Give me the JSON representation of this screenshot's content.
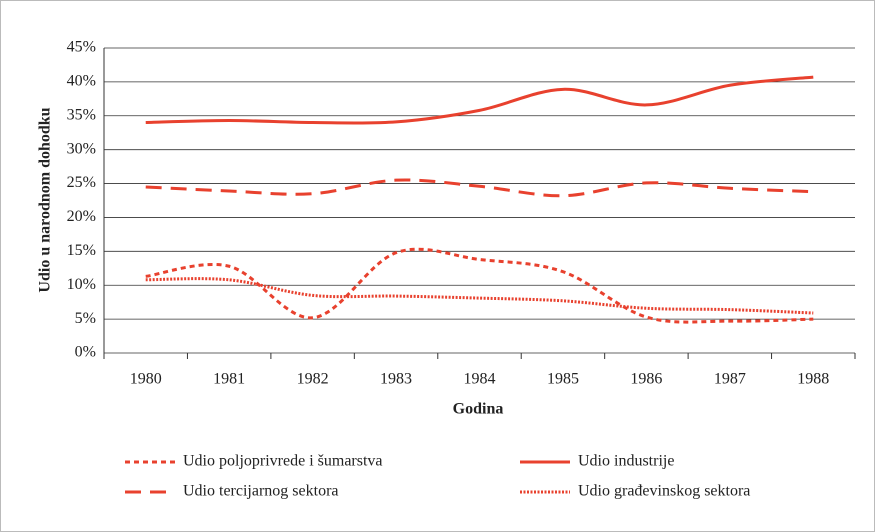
{
  "chart_data": {
    "type": "line",
    "y_label": "Udio u narodnom dohodku",
    "x_label": "Godina",
    "categories": [
      "1980",
      "1981",
      "1982",
      "1983",
      "1984",
      "1985",
      "1986",
      "1987",
      "1988"
    ],
    "series": [
      {
        "name": "Udio poljoprivrede i šumarstva",
        "color": "#e8412e",
        "linestyle": "dashed",
        "values": [
          11.3,
          12.8,
          5.2,
          14.8,
          13.8,
          12.0,
          5.3,
          4.7,
          5.0
        ]
      },
      {
        "name": "Udio industrije",
        "color": "#e8412e",
        "linestyle": "solid",
        "values": [
          34.0,
          34.3,
          34.0,
          34.1,
          35.8,
          38.9,
          36.6,
          39.5,
          40.7
        ]
      },
      {
        "name": "Udio tercijarnog sektora",
        "color": "#e8412e",
        "linestyle": "long-dash",
        "values": [
          24.5,
          23.9,
          23.5,
          25.5,
          24.6,
          23.2,
          25.1,
          24.3,
          23.8
        ]
      },
      {
        "name": "Udio građevinskog sektora",
        "color": "#e8412e",
        "linestyle": "dotted",
        "values": [
          10.8,
          10.8,
          8.5,
          8.4,
          8.1,
          7.7,
          6.6,
          6.4,
          5.9
        ]
      }
    ],
    "ylim": [
      0,
      45
    ],
    "yticks": [
      {
        "value": 0,
        "label": "0%"
      },
      {
        "value": 5,
        "label": "5%"
      },
      {
        "value": 10,
        "label": "10%"
      },
      {
        "value": 15,
        "label": "15%"
      },
      {
        "value": 20,
        "label": "20%"
      },
      {
        "value": 25,
        "label": "25%"
      },
      {
        "value": 30,
        "label": "30%"
      },
      {
        "value": 35,
        "label": "35%"
      },
      {
        "value": 40,
        "label": "40%"
      },
      {
        "value": 45,
        "label": "45%"
      }
    ],
    "grid": true
  }
}
